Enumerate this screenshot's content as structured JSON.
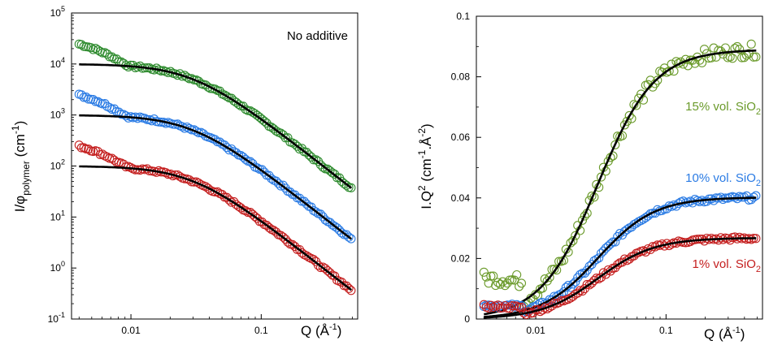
{
  "chart_data": [
    {
      "type": "scatter",
      "scale": "log-log",
      "xlim": [
        0.0035,
        0.55
      ],
      "ylim": [
        0.1,
        100000
      ],
      "xticks": [
        {
          "v": 0.01,
          "label": "0.01"
        },
        {
          "v": 0.1,
          "label": "0.1"
        }
      ],
      "yticks": [
        {
          "v": 0.1,
          "base": "10",
          "exp": "-1"
        },
        {
          "v": 1,
          "base": "10",
          "exp": "0"
        },
        {
          "v": 10,
          "base": "10",
          "exp": "1"
        },
        {
          "v": 100,
          "base": "10",
          "exp": "2"
        },
        {
          "v": 1000,
          "base": "10",
          "exp": "3"
        },
        {
          "v": 10000,
          "base": "10",
          "exp": "4"
        },
        {
          "v": 100000,
          "base": "10",
          "exp": "5"
        }
      ],
      "xlabel": {
        "main": "Q (Å",
        "sup": "-1",
        "end": ")"
      },
      "ylabel": {
        "main": "I/φ",
        "sub": "polymer",
        "mid": " (cm",
        "sup": "-1",
        "end": ")"
      },
      "annotation": "No additive",
      "grid": false,
      "series": [
        {
          "color": "#2e8b2e",
          "i0": 10000,
          "rg": 45,
          "extra": 2.5
        },
        {
          "color": "#2a7be4",
          "i0": 1000,
          "rg": 45,
          "extra": 2.5
        },
        {
          "color": "#c41e1e",
          "i0": 100,
          "rg": 45,
          "extra": 2.5
        }
      ]
    },
    {
      "type": "scatter",
      "scale": "log-linear",
      "xlim": [
        0.0035,
        0.55
      ],
      "ylim": [
        0,
        0.1
      ],
      "xticks": [
        {
          "v": 0.01,
          "label": "0.01"
        },
        {
          "v": 0.1,
          "label": "0.1"
        }
      ],
      "yticks": [
        {
          "v": 0,
          "label": "0"
        },
        {
          "v": 0.02,
          "label": "0.02"
        },
        {
          "v": 0.04,
          "label": "0.04"
        },
        {
          "v": 0.06,
          "label": "0.06"
        },
        {
          "v": 0.08,
          "label": "0.08"
        },
        {
          "v": 0.1,
          "label": "0.1"
        }
      ],
      "xlabel": {
        "main": "Q (Å",
        "sup": "-1",
        "end": ")"
      },
      "ylabel": {
        "main": "I.Q",
        "sup": "2",
        "mid": " (cm",
        "sup2": "-1",
        "mid2": ".Å",
        "sup3": "-2",
        "end": ")"
      },
      "grid": false,
      "series": [
        {
          "name": {
            "main": "15% vol. SiO",
            "sub": "2"
          },
          "color": "#6a9a2a",
          "plateau": 0.089,
          "rg": 45
        },
        {
          "name": {
            "main": "10% vol. SiO",
            "sub": "2"
          },
          "color": "#2a7be4",
          "plateau": 0.0402,
          "rg": 45
        },
        {
          "name": {
            "main": "1% vol. SiO",
            "sub": "2"
          },
          "color": "#c41e1e",
          "plateau": 0.0268,
          "rg": 45
        }
      ]
    }
  ]
}
